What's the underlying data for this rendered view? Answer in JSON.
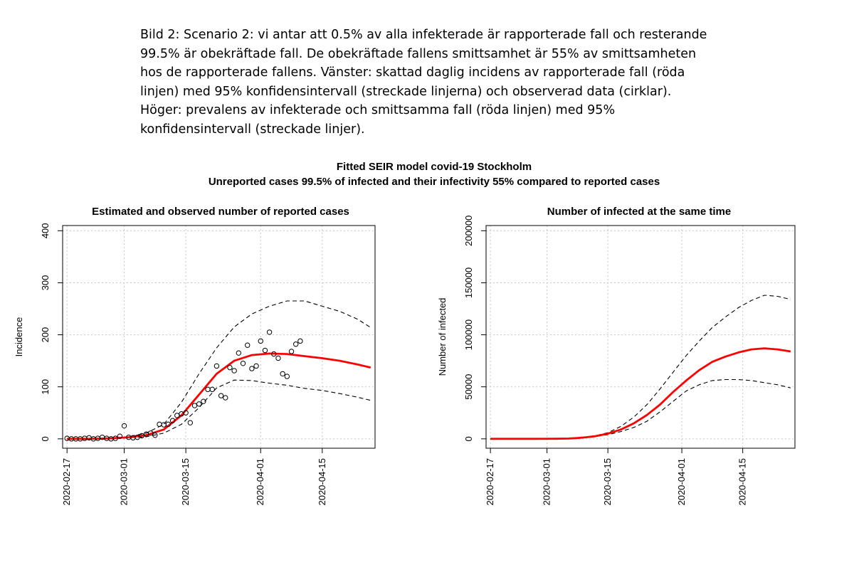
{
  "caption": {
    "lines": [
      "Bild 2: Scenario 2: vi antar att 0.5% av alla infekterade är rapporterade fall och resterande",
      "99.5% är obekräftade fall. De obekräftade fallens smittsamhet är 55% av smittsamheten",
      "hos de rapporterade fallens. Vänster: skattad daglig incidens av rapporterade fall (röda",
      "linjen) med 95% konfidensintervall (streckade linjerna) och observerad data (cirklar).",
      "Höger: prevalens av infekterade och smittsamma fall (röda linjen) med 95%",
      "konfidensintervall (streckade linjer)."
    ]
  },
  "figure": {
    "title": "Fitted SEIR model covid-19 Stockholm",
    "subtitle": "Unreported cases 99.5% of infected and their infectivity 55% compared to reported cases"
  },
  "colors": {
    "fit": "#ff0000",
    "ci": "#000000",
    "grid": "#c8c8c8",
    "obs": "#000000"
  },
  "chart_data": [
    {
      "type": "line",
      "title": "Estimated and observed number of reported cases",
      "xlabel": "",
      "ylabel": "Incidence",
      "x_domain_days": [
        -1,
        70
      ],
      "ylim": [
        -18,
        410
      ],
      "xticks": [
        {
          "day": 0,
          "label": "2020-02-17"
        },
        {
          "day": 13,
          "label": "2020-03-01"
        },
        {
          "day": 27,
          "label": "2020-03-15"
        },
        {
          "day": 44,
          "label": "2020-04-01"
        },
        {
          "day": 58,
          "label": "2020-04-15"
        }
      ],
      "yticks": [
        0,
        100,
        200,
        300,
        400
      ],
      "grid": true,
      "fit": {
        "name": "fitted incidence",
        "x": [
          0,
          5,
          10,
          14,
          18,
          22,
          26,
          30,
          34,
          38,
          42,
          46,
          50,
          54,
          58,
          62,
          66,
          69
        ],
        "y": [
          0,
          0,
          1,
          3,
          7,
          18,
          45,
          85,
          125,
          150,
          161,
          164,
          163,
          159,
          155,
          150,
          143,
          137
        ]
      },
      "ci_upper": {
        "name": "95% upper",
        "x": [
          0,
          5,
          10,
          14,
          18,
          22,
          26,
          30,
          34,
          38,
          42,
          46,
          50,
          54,
          58,
          62,
          66,
          69
        ],
        "y": [
          0,
          0,
          1,
          4,
          11,
          28,
          70,
          125,
          175,
          215,
          240,
          255,
          265,
          265,
          255,
          245,
          230,
          214
        ]
      },
      "ci_lower": {
        "name": "95% lower",
        "x": [
          0,
          5,
          10,
          14,
          18,
          22,
          26,
          30,
          34,
          38,
          42,
          46,
          50,
          54,
          58,
          62,
          66,
          69
        ],
        "y": [
          0,
          0,
          0,
          2,
          4,
          11,
          28,
          60,
          98,
          113,
          112,
          107,
          103,
          97,
          93,
          87,
          80,
          74
        ]
      },
      "observed": {
        "name": "observed",
        "x": [
          0,
          1,
          2,
          3,
          4,
          5,
          6,
          7,
          8,
          9,
          10,
          11,
          12,
          13,
          14,
          15,
          16,
          17,
          18,
          19,
          20,
          21,
          22,
          23,
          24,
          25,
          26,
          27,
          28,
          29,
          30,
          31,
          32,
          33,
          34,
          35,
          36,
          37,
          38,
          39,
          40,
          41,
          42,
          43,
          44,
          45,
          46,
          47,
          48,
          49,
          50,
          51,
          52,
          53
        ],
        "y": [
          1,
          0,
          0,
          0,
          1,
          2,
          0,
          1,
          3,
          1,
          0,
          1,
          5,
          25,
          3,
          2,
          3,
          6,
          9,
          11,
          7,
          28,
          27,
          28,
          35,
          45,
          48,
          50,
          31,
          64,
          67,
          72,
          95,
          95,
          140,
          83,
          79,
          137,
          131,
          165,
          145,
          180,
          135,
          140,
          188,
          170,
          205,
          163,
          155,
          125,
          120,
          168,
          182,
          188
        ]
      }
    },
    {
      "type": "line",
      "title": "Number of infected at the same time",
      "xlabel": "",
      "ylabel": "Number of infected",
      "x_domain_days": [
        -1,
        70
      ],
      "ylim": [
        -9000,
        205000
      ],
      "xticks": [
        {
          "day": 0,
          "label": "2020-02-17"
        },
        {
          "day": 13,
          "label": "2020-03-01"
        },
        {
          "day": 27,
          "label": "2020-03-15"
        },
        {
          "day": 44,
          "label": "2020-04-01"
        },
        {
          "day": 58,
          "label": "2020-04-15"
        }
      ],
      "yticks": [
        0,
        50000,
        100000,
        150000,
        200000
      ],
      "grid": true,
      "fit": {
        "name": "fitted prevalence",
        "x": [
          0,
          5,
          10,
          15,
          18,
          20,
          22,
          24,
          27,
          30,
          33,
          36,
          39,
          42,
          45,
          48,
          51,
          54,
          57,
          60,
          63,
          66,
          69
        ],
        "y": [
          0,
          0,
          0,
          100,
          300,
          800,
          1500,
          2500,
          5000,
          9000,
          15000,
          23000,
          33000,
          45000,
          56000,
          66000,
          74000,
          79000,
          83000,
          86000,
          87000,
          86000,
          84000
        ]
      },
      "ci_upper": {
        "name": "95% upper",
        "x": [
          0,
          5,
          10,
          15,
          18,
          20,
          22,
          24,
          27,
          30,
          33,
          36,
          39,
          42,
          45,
          48,
          51,
          54,
          57,
          60,
          63,
          66,
          69
        ],
        "y": [
          0,
          0,
          0,
          100,
          300,
          800,
          1600,
          2800,
          6000,
          12000,
          21000,
          33000,
          48000,
          64000,
          80000,
          94000,
          107000,
          117000,
          126000,
          133000,
          138000,
          137000,
          134000
        ]
      },
      "ci_lower": {
        "name": "95% lower",
        "x": [
          0,
          5,
          10,
          15,
          18,
          20,
          22,
          24,
          27,
          30,
          33,
          36,
          39,
          42,
          45,
          48,
          51,
          54,
          57,
          60,
          63,
          66,
          69
        ],
        "y": [
          0,
          0,
          0,
          100,
          300,
          700,
          1300,
          2200,
          4000,
          7000,
          11000,
          17000,
          26000,
          36000,
          46000,
          52000,
          56000,
          57000,
          57000,
          56000,
          54000,
          52000,
          49000
        ]
      }
    }
  ]
}
